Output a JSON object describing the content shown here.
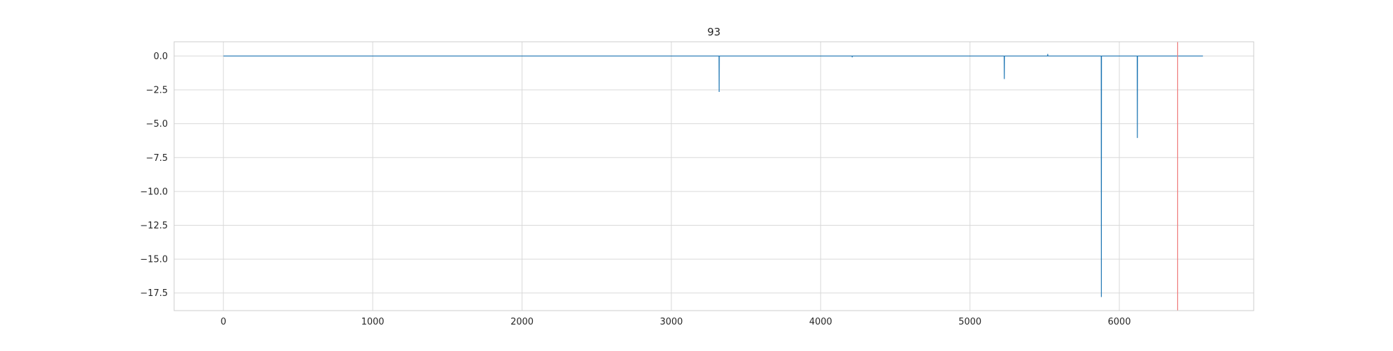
{
  "chart_data": {
    "type": "line",
    "title": "93",
    "xlabel": "",
    "ylabel": "",
    "xlim": [
      -330,
      6900
    ],
    "ylim": [
      -18.8,
      1.05
    ],
    "x_ticks": [
      0,
      1000,
      2000,
      3000,
      4000,
      5000,
      6000
    ],
    "x_tick_labels": [
      "0",
      "1000",
      "2000",
      "3000",
      "4000",
      "5000",
      "6000"
    ],
    "y_ticks": [
      0.0,
      -2.5,
      -5.0,
      -7.5,
      -10.0,
      -12.5,
      -15.0,
      -17.5
    ],
    "y_tick_labels": [
      "0.0",
      "−2.5",
      "−5.0",
      "−7.5",
      "−10.0",
      "−12.5",
      "−15.0",
      "−17.5"
    ],
    "grid": true,
    "series": [
      {
        "color": "#1f77b4",
        "x": [
          0,
          3319,
          3320,
          3321,
          4210,
          4211,
          4212,
          5229,
          5230,
          5231,
          5520,
          5521,
          5522,
          5879,
          5880,
          5881,
          6120,
          6121,
          6122,
          6560
        ],
        "y": [
          0,
          0,
          -2.65,
          0,
          0,
          -0.1,
          0,
          0,
          -1.7,
          0,
          0,
          0.15,
          0,
          0,
          -17.8,
          0,
          0,
          -6.05,
          0,
          0
        ]
      }
    ],
    "vlines": [
      {
        "x": 6390,
        "color": "#f08080"
      }
    ]
  }
}
